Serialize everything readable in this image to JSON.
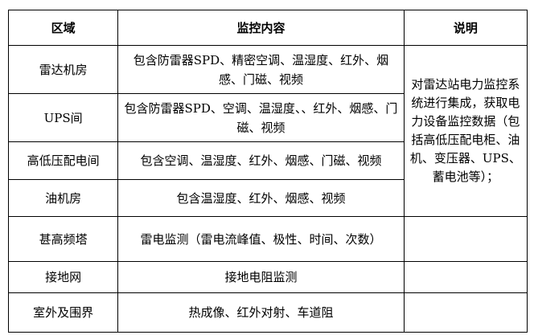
{
  "table": {
    "headers": [
      "区域",
      "监控内容",
      "说明"
    ],
    "rows": [
      {
        "area": "雷达机房",
        "content": "包含防雷器SPD、精密空调、温湿度、红外、烟感、门磁、视频"
      },
      {
        "area": "UPS间",
        "content": "包含防雷器SPD、空调、温湿度、、红外、烟感、门磁、视频"
      },
      {
        "area": "高低压配电间",
        "content": "包含空调、温湿度、红外、烟感、门磁、视频"
      },
      {
        "area": "油机房",
        "content": "包含温湿度、红外、烟感、视频"
      },
      {
        "area": "甚高频塔",
        "content": "雷电监测（雷电流峰值、极性、时间、次数）"
      },
      {
        "area": "接地网",
        "content": "接地电阻监测"
      },
      {
        "area": "室外及围界",
        "content": "热成像、红外对射、车道阻"
      }
    ],
    "note": "对雷达站电力监控系统进行集成，获取电力设备监控数据（包括高低压配电柜、油机、变压器、UPS、蓄电池等）；"
  }
}
